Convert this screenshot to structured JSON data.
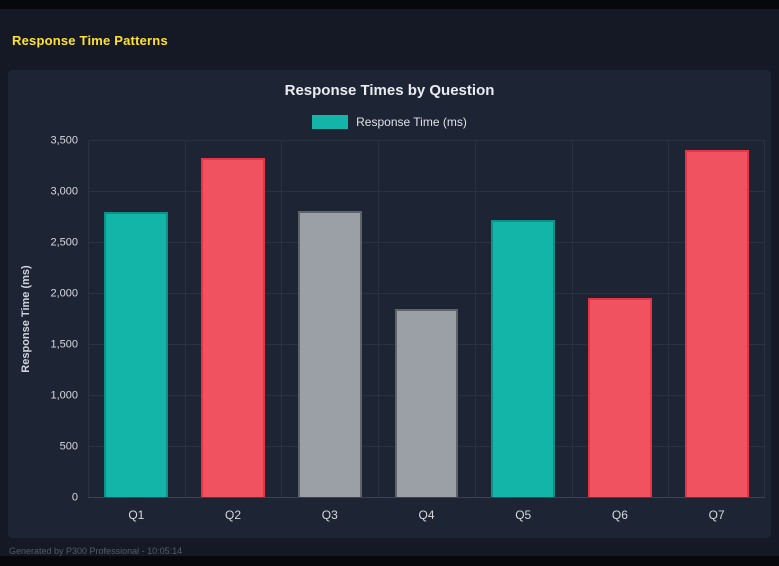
{
  "page": {
    "title": "Response Time Patterns",
    "footer": "Generated by P300 Professional - 10:05:14",
    "accent_color": "#ffe133",
    "background_color": "#141925",
    "panel_color": "#1d2433"
  },
  "chart_data": {
    "type": "bar",
    "title": "Response Times by Question",
    "ylabel": "Response Time (ms)",
    "xlabel": "",
    "legend": [
      {
        "label": "Response Time (ms)",
        "color": "#12b5a8"
      }
    ],
    "legend_position": "top",
    "grid": true,
    "categories": [
      "Q1",
      "Q2",
      "Q3",
      "Q4",
      "Q5",
      "Q6",
      "Q7"
    ],
    "values": [
      2800,
      3330,
      2810,
      1850,
      2730,
      1960,
      3410
    ],
    "ylim": [
      0,
      3500
    ],
    "yticks": [
      0,
      500,
      1000,
      1500,
      2000,
      2500,
      3000,
      3500
    ],
    "ytick_labels": [
      "0",
      "500",
      "1,000",
      "1,500",
      "2,000",
      "2,500",
      "3,000",
      "3,500"
    ],
    "bar_colors": [
      {
        "fill": "#12b5a8",
        "border": "#0d9186"
      },
      {
        "fill": "#f0525f",
        "border": "#e63545"
      },
      {
        "fill": "#9aa0a6",
        "border": "#5f6468"
      },
      {
        "fill": "#9aa0a6",
        "border": "#5f6468"
      },
      {
        "fill": "#12b5a8",
        "border": "#0d9186"
      },
      {
        "fill": "#f0525f",
        "border": "#e63545"
      },
      {
        "fill": "#f0525f",
        "border": "#e63545"
      }
    ]
  }
}
